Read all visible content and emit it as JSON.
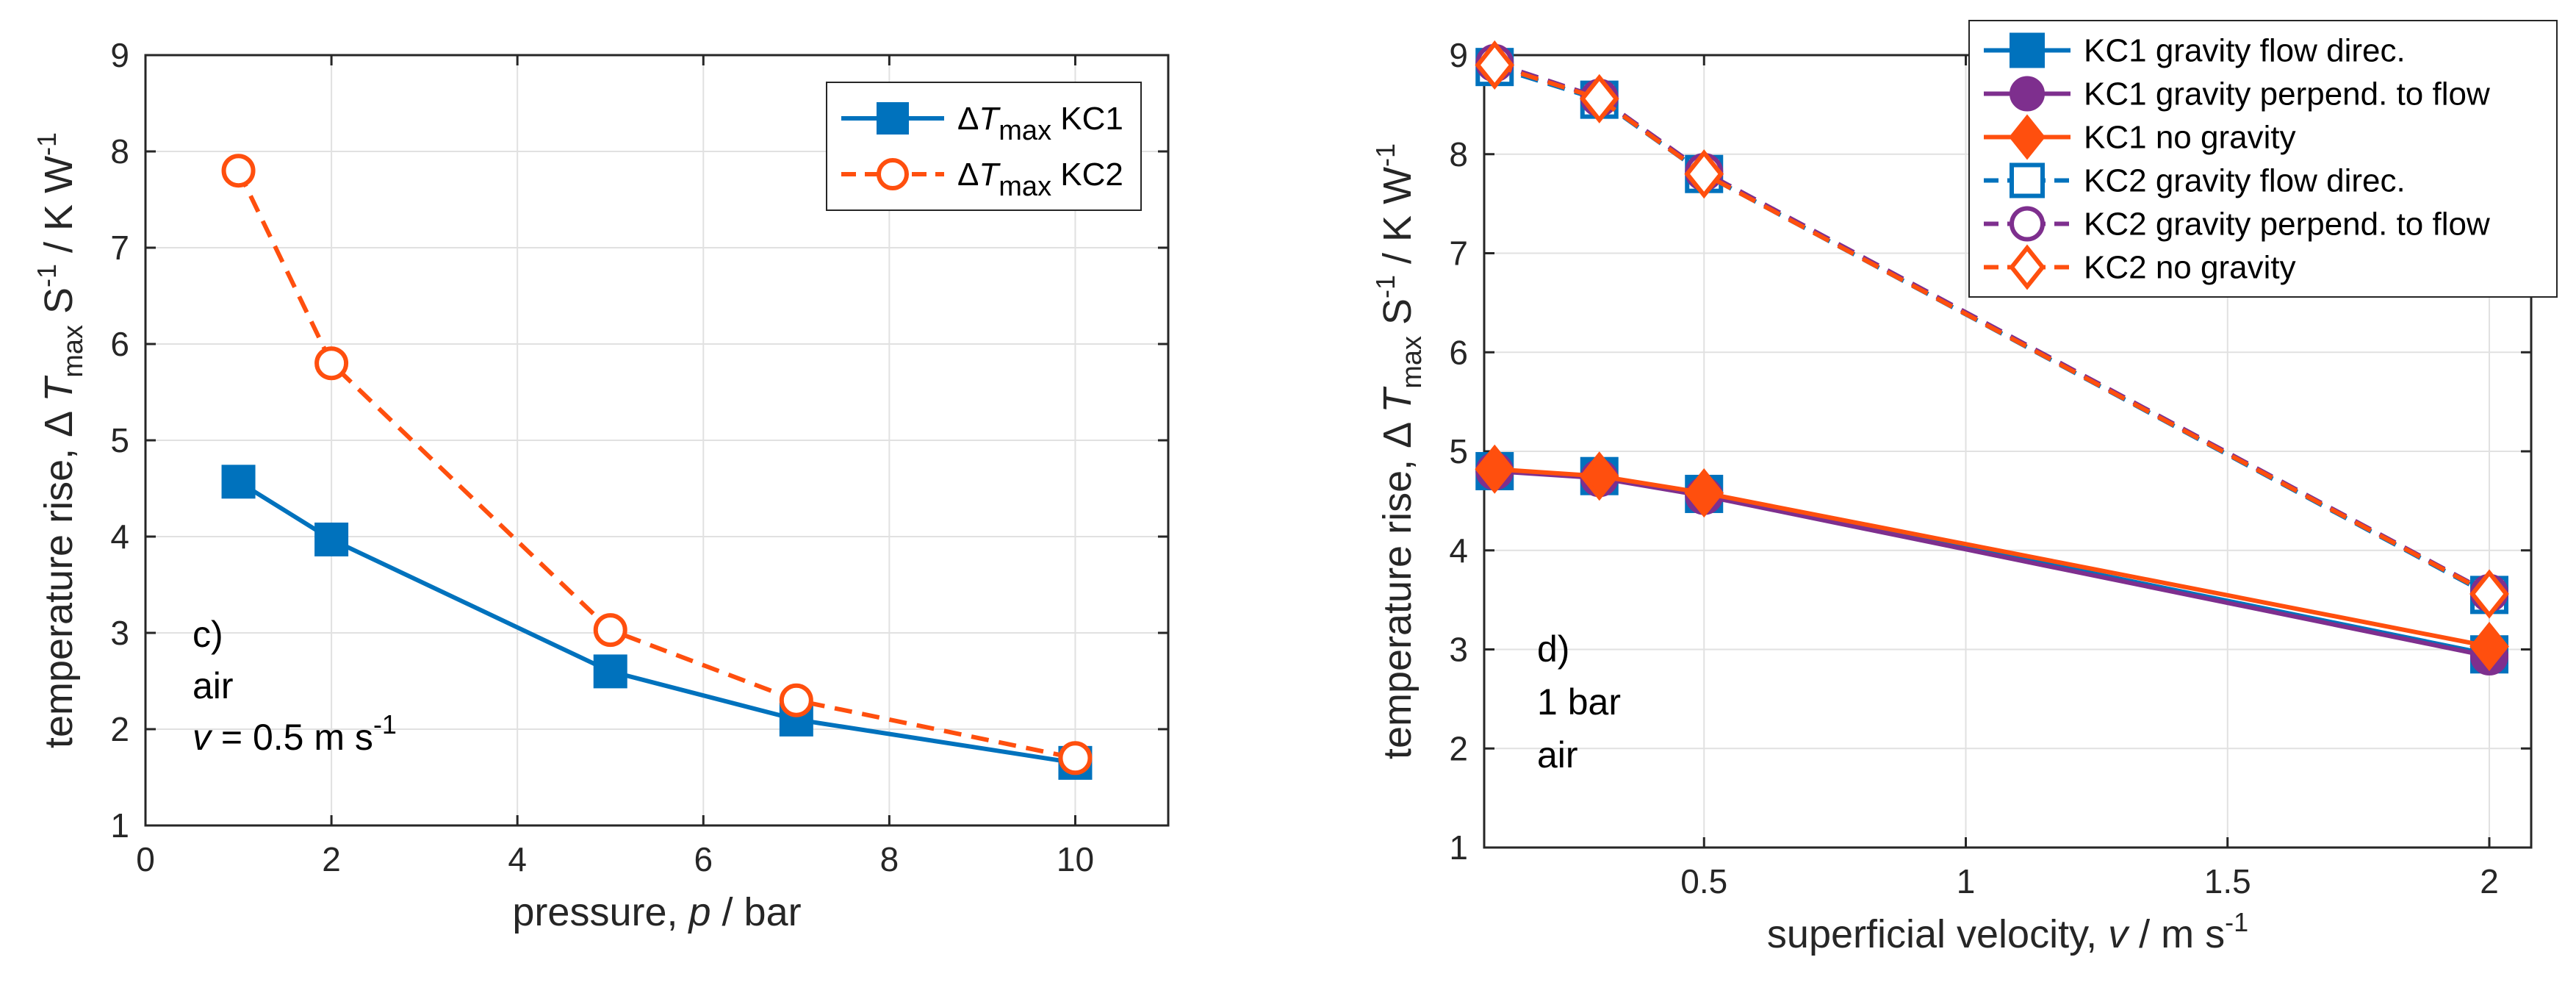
{
  "chart_data": [
    {
      "type": "line",
      "panel_label": "c)",
      "annotation_lines": [
        "c)",
        "air"
      ],
      "annotation_velocity": {
        "var": "v",
        "rest": " = 0.5 m s",
        "exp": "-1"
      },
      "x": [
        1,
        2,
        5,
        7,
        10
      ],
      "xlim": [
        0,
        11
      ],
      "ylim": [
        1,
        9
      ],
      "xticks": [
        0,
        2,
        4,
        6,
        8,
        10
      ],
      "yticks": [
        1,
        2,
        3,
        4,
        5,
        6,
        7,
        8,
        9
      ],
      "xlabel": {
        "pre": "pressure, ",
        "var": "p",
        "post": " / bar"
      },
      "ylabel": {
        "pre": "temperature rise, Δ ",
        "var": "T",
        "sub": "max",
        "mid": " S",
        "sup1": "-1",
        "post": " / K W",
        "sup2": "-1"
      },
      "grid": true,
      "legend_position": "top-right",
      "series": [
        {
          "name": "KC1",
          "legend_prefix": "Δ",
          "legend_var": "T",
          "legend_sub": "max",
          "values": [
            4.57,
            3.97,
            2.6,
            2.1,
            1.65
          ],
          "color": "#0072BD",
          "dash": "solid",
          "marker": "square-filled"
        },
        {
          "name": "KC2",
          "legend_prefix": "Δ",
          "legend_var": "T",
          "legend_sub": "max",
          "values": [
            7.8,
            5.8,
            3.03,
            2.3,
            1.7
          ],
          "color": "#FF4F0E",
          "dash": "dashed",
          "marker": "circle-open"
        }
      ]
    },
    {
      "type": "line",
      "panel_label": "d)",
      "annotation_lines": [
        "d)",
        "1 bar",
        "air"
      ],
      "x": [
        0.1,
        0.3,
        0.5,
        2
      ],
      "xlim": [
        0.08,
        2.08
      ],
      "ylim": [
        1,
        9
      ],
      "xticks": [
        0.5,
        1,
        1.5,
        2
      ],
      "xtick_labels": [
        "0.5",
        "1",
        "1.5",
        "2"
      ],
      "yticks": [
        1,
        2,
        3,
        4,
        5,
        6,
        7,
        8,
        9
      ],
      "xlabel": {
        "pre": "superficial velocity, ",
        "var": "v",
        "post": " / m s",
        "sup": "-1"
      },
      "ylabel": {
        "pre": "temperature rise, Δ ",
        "var": "T",
        "sub": "max",
        "mid": " S",
        "sup1": "-1",
        "post": " / K W",
        "sup2": "-1"
      },
      "grid": true,
      "legend_position": "top-right",
      "series": [
        {
          "name": "KC1 gravity flow direc.",
          "values": [
            4.8,
            4.75,
            4.57,
            2.95
          ],
          "color": "#0072BD",
          "dash": "solid",
          "marker": "square-filled"
        },
        {
          "name": "KC1 gravity perpend. to flow",
          "values": [
            4.8,
            4.73,
            4.55,
            2.93
          ],
          "color": "#7E2F8E",
          "dash": "solid",
          "marker": "circle-filled"
        },
        {
          "name": "KC1 no gravity",
          "values": [
            4.82,
            4.75,
            4.58,
            3.03
          ],
          "color": "#FF4F0E",
          "dash": "solid",
          "marker": "diamond-filled"
        },
        {
          "name": "KC2 gravity flow direc.",
          "values": [
            8.88,
            8.55,
            7.8,
            3.55
          ],
          "color": "#0072BD",
          "dash": "dashed",
          "marker": "square-open"
        },
        {
          "name": "KC2 gravity perpend. to flow",
          "values": [
            8.92,
            8.57,
            7.82,
            3.57
          ],
          "color": "#7E2F8E",
          "dash": "dashed",
          "marker": "circle-open"
        },
        {
          "name": "KC2 no gravity",
          "values": [
            8.9,
            8.56,
            7.8,
            3.56
          ],
          "color": "#FF4F0E",
          "dash": "dashed",
          "marker": "diamond-open"
        }
      ]
    }
  ]
}
